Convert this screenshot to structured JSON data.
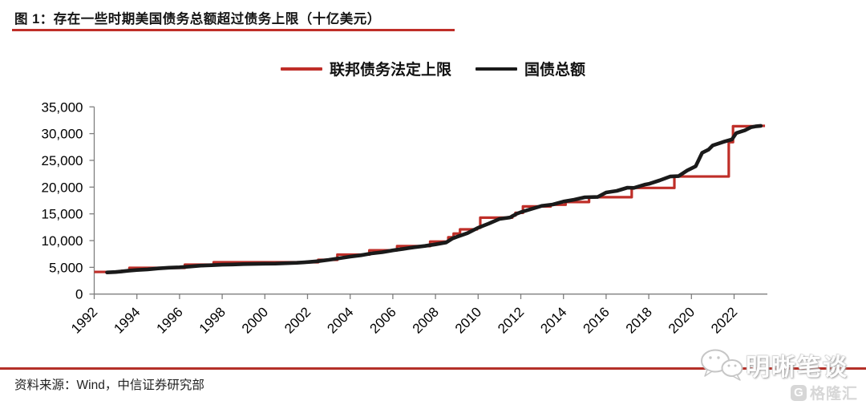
{
  "header": {
    "title": "图 1：存在一些时期美国债务总额超过债务上限（十亿美元）"
  },
  "footer": {
    "source": "资料来源：Wind，中信证券研究部",
    "watermark_wechat": "明晰笔谈",
    "watermark_gelonghui": "格隆汇",
    "gelonghui_badge": "G"
  },
  "colors": {
    "accent_red": "#bf2e28",
    "series_black": "#1a1a1a",
    "axis_gray": "#7f7f7f"
  },
  "chart_data": {
    "type": "line",
    "title": "图 1：存在一些时期美国债务总额超过债务上限（十亿美元）",
    "unit": "十亿美元",
    "xlabel": "",
    "ylabel": "",
    "grid": false,
    "legend_position": "top",
    "x_axis": {
      "ticks": [
        1992,
        1994,
        1996,
        1998,
        2000,
        2002,
        2004,
        2006,
        2008,
        2010,
        2012,
        2014,
        2016,
        2018,
        2020,
        2022
      ],
      "range": [
        1992,
        2023.6
      ]
    },
    "y_axis": {
      "ticks": [
        0,
        5000,
        10000,
        15000,
        20000,
        25000,
        30000,
        35000
      ],
      "range": [
        0,
        35000
      ]
    },
    "series": [
      {
        "name": "联邦债务法定上限",
        "color": "#bf2e28",
        "style": "step",
        "end_x": 2023.45,
        "points": [
          [
            1992.0,
            4145
          ],
          [
            1993.3,
            4370
          ],
          [
            1993.65,
            4900
          ],
          [
            1996.25,
            5500
          ],
          [
            1997.6,
            5950
          ],
          [
            2002.5,
            6400
          ],
          [
            2003.4,
            7384
          ],
          [
            2004.9,
            8184
          ],
          [
            2006.2,
            8965
          ],
          [
            2007.75,
            9815
          ],
          [
            2008.6,
            10615
          ],
          [
            2008.85,
            11315
          ],
          [
            2009.15,
            12104
          ],
          [
            2009.95,
            12394
          ],
          [
            2010.1,
            14294
          ],
          [
            2011.6,
            14694
          ],
          [
            2011.75,
            15194
          ],
          [
            2012.1,
            16394
          ],
          [
            2013.4,
            16699
          ],
          [
            2014.1,
            17212
          ],
          [
            2015.2,
            18113
          ],
          [
            2017.2,
            19847
          ],
          [
            2019.2,
            21988
          ],
          [
            2021.75,
            28401
          ],
          [
            2021.95,
            31381
          ],
          [
            2023.2,
            31450
          ]
        ]
      },
      {
        "name": "国债总额",
        "color": "#1a1a1a",
        "style": "line",
        "points": [
          [
            1992.6,
            4050
          ],
          [
            1993.0,
            4130
          ],
          [
            1993.3,
            4250
          ],
          [
            1993.6,
            4360
          ],
          [
            1994.0,
            4500
          ],
          [
            1994.5,
            4620
          ],
          [
            1995.0,
            4800
          ],
          [
            1995.5,
            4930
          ],
          [
            1996.0,
            5000
          ],
          [
            1996.5,
            5150
          ],
          [
            1997.0,
            5320
          ],
          [
            1997.5,
            5400
          ],
          [
            1998.0,
            5480
          ],
          [
            1998.5,
            5530
          ],
          [
            1999.0,
            5600
          ],
          [
            1999.5,
            5630
          ],
          [
            2000.0,
            5680
          ],
          [
            2000.5,
            5690
          ],
          [
            2001.0,
            5770
          ],
          [
            2001.5,
            5850
          ],
          [
            2002.0,
            5980
          ],
          [
            2002.5,
            6150
          ],
          [
            2003.0,
            6400
          ],
          [
            2003.5,
            6700
          ],
          [
            2004.0,
            7000
          ],
          [
            2004.5,
            7250
          ],
          [
            2005.0,
            7600
          ],
          [
            2005.5,
            7830
          ],
          [
            2006.0,
            8170
          ],
          [
            2006.5,
            8450
          ],
          [
            2007.0,
            8750
          ],
          [
            2007.5,
            9000
          ],
          [
            2008.0,
            9300
          ],
          [
            2008.5,
            9650
          ],
          [
            2008.8,
            10400
          ],
          [
            2009.0,
            10700
          ],
          [
            2009.5,
            11400
          ],
          [
            2010.0,
            12400
          ],
          [
            2010.5,
            13200
          ],
          [
            2011.0,
            14050
          ],
          [
            2011.5,
            14340
          ],
          [
            2011.8,
            15000
          ],
          [
            2012.0,
            15300
          ],
          [
            2012.5,
            15900
          ],
          [
            2013.0,
            16500
          ],
          [
            2013.5,
            16740
          ],
          [
            2014.0,
            17300
          ],
          [
            2014.5,
            17650
          ],
          [
            2015.0,
            18100
          ],
          [
            2015.6,
            18150
          ],
          [
            2016.0,
            19000
          ],
          [
            2016.5,
            19300
          ],
          [
            2017.0,
            19900
          ],
          [
            2017.3,
            19850
          ],
          [
            2017.8,
            20450
          ],
          [
            2018.0,
            20600
          ],
          [
            2018.5,
            21250
          ],
          [
            2019.0,
            21980
          ],
          [
            2019.4,
            22050
          ],
          [
            2019.8,
            23100
          ],
          [
            2020.2,
            23900
          ],
          [
            2020.5,
            26400
          ],
          [
            2020.8,
            27000
          ],
          [
            2021.0,
            27800
          ],
          [
            2021.5,
            28450
          ],
          [
            2021.9,
            28900
          ],
          [
            2022.1,
            30100
          ],
          [
            2022.5,
            30600
          ],
          [
            2022.8,
            31200
          ],
          [
            2023.0,
            31350
          ],
          [
            2023.25,
            31450
          ]
        ]
      }
    ]
  }
}
